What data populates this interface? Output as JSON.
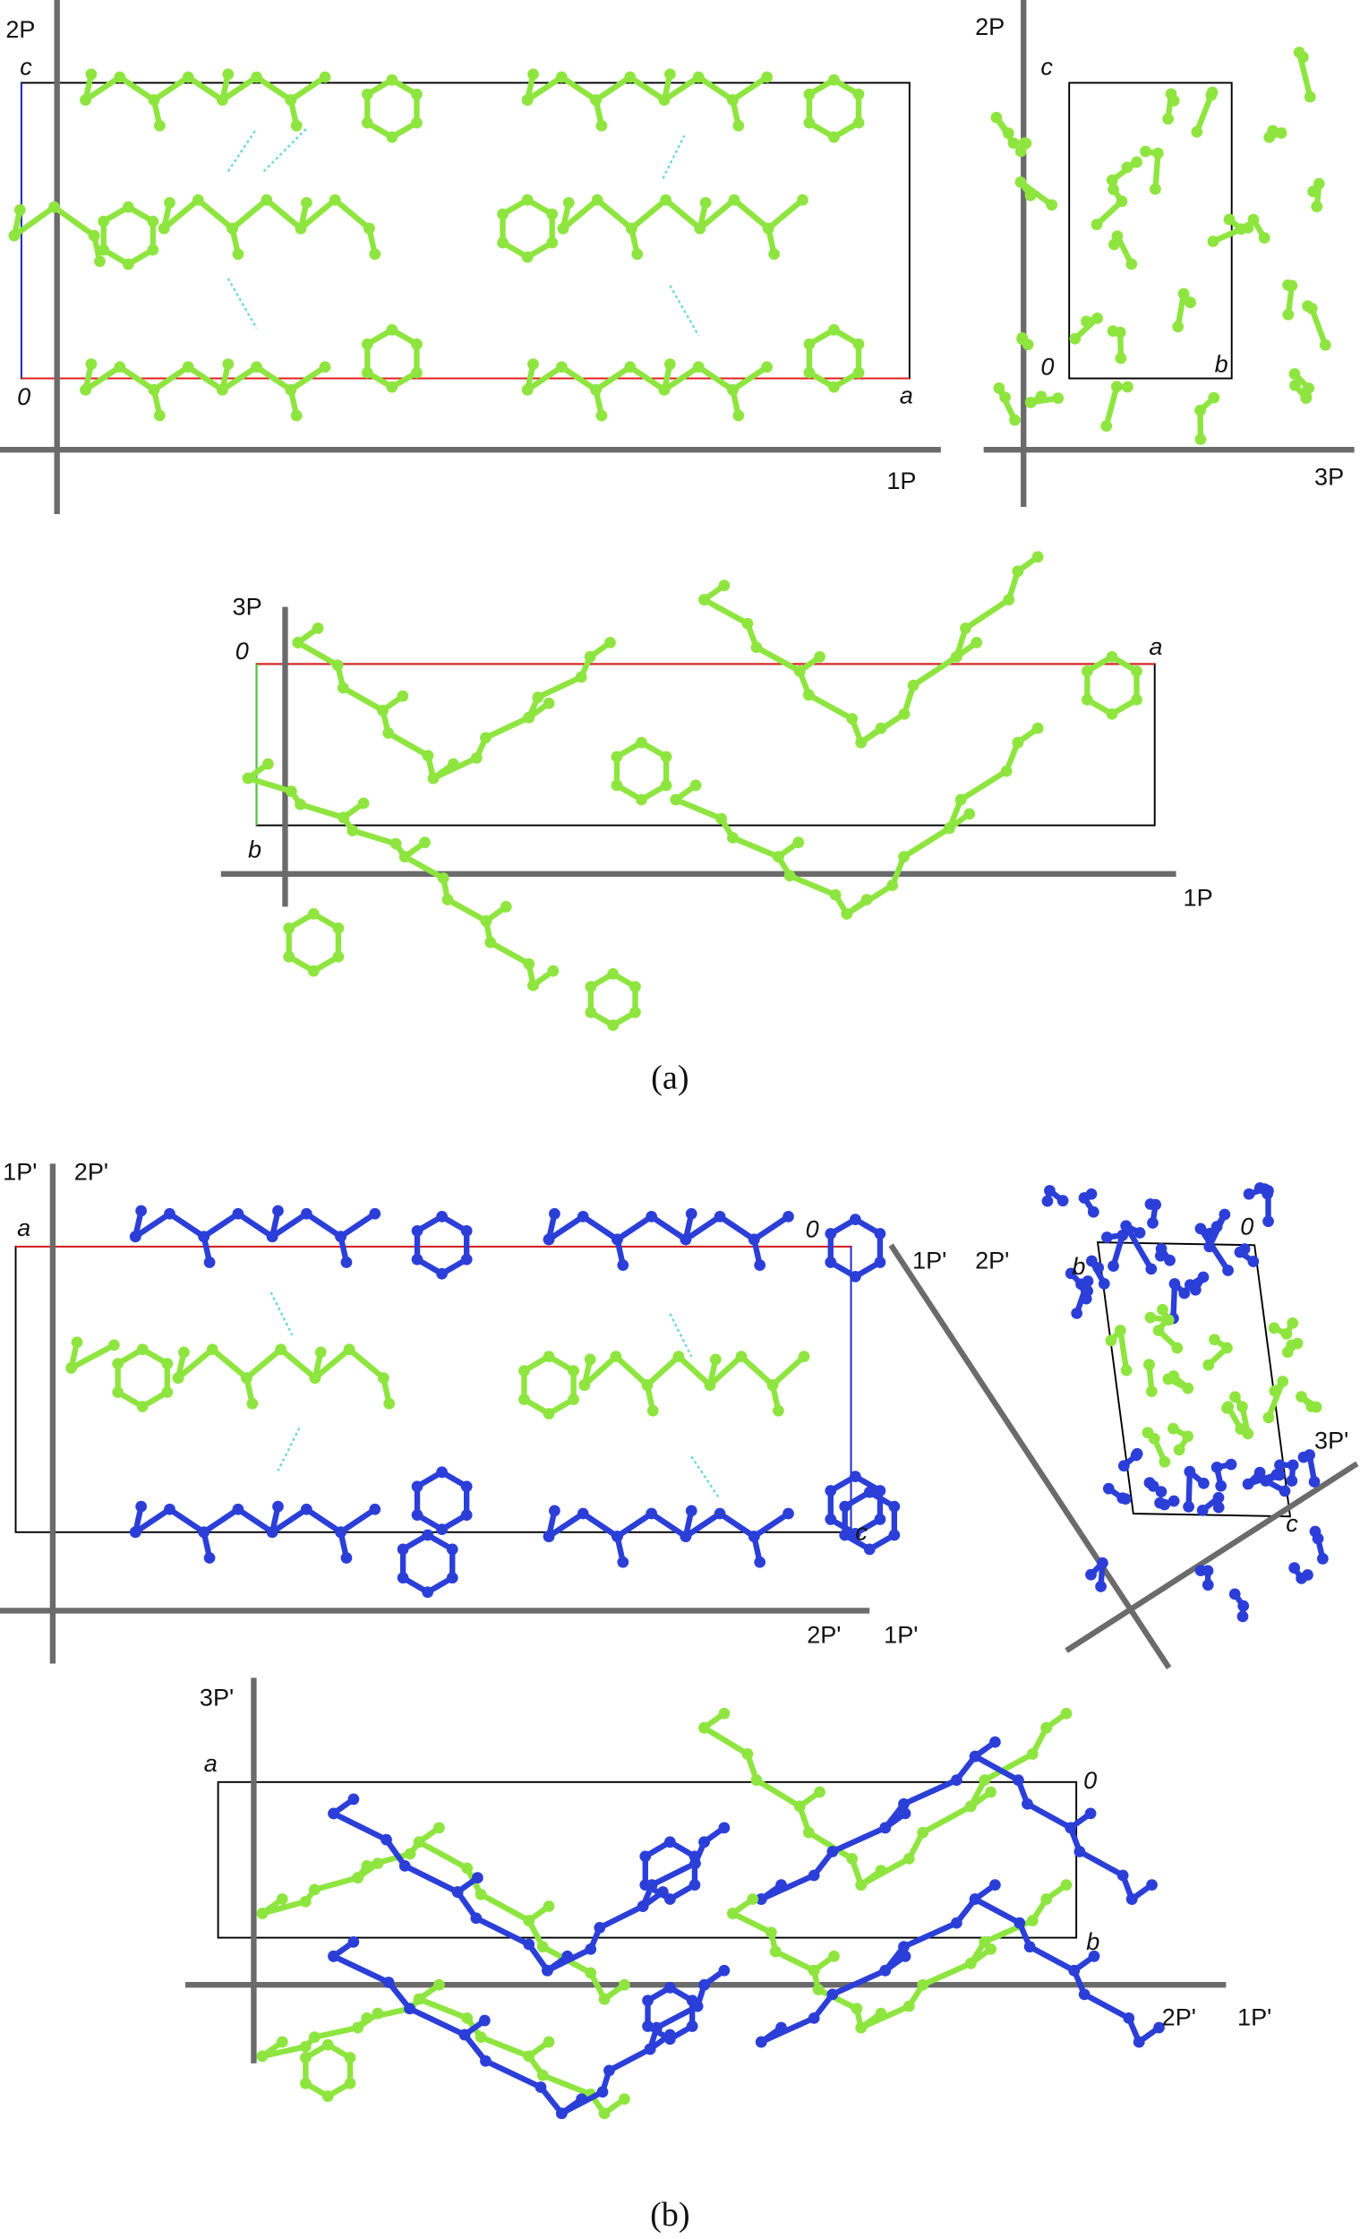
{
  "figure": {
    "part_a": {
      "caption": "(a)",
      "panels": [
        {
          "labels": [
            "2P",
            "c",
            "0",
            "a",
            "1P"
          ]
        },
        {
          "labels": [
            "2P",
            "c",
            "0",
            "b",
            "3P"
          ]
        },
        {
          "labels": [
            "3P",
            "0",
            "a",
            "b",
            "1P"
          ]
        }
      ]
    },
    "part_b": {
      "caption": "(b)",
      "panels": [
        {
          "labels": [
            "1P'",
            "2P'",
            "a",
            "0",
            "c",
            "2P'",
            "1P'"
          ]
        },
        {
          "labels": [
            "1P'",
            "2P'",
            "b",
            "0",
            "3P'",
            "c"
          ]
        },
        {
          "labels": [
            "3P'",
            "a",
            "0",
            "b",
            "2P'",
            "1P'"
          ]
        }
      ]
    }
  }
}
